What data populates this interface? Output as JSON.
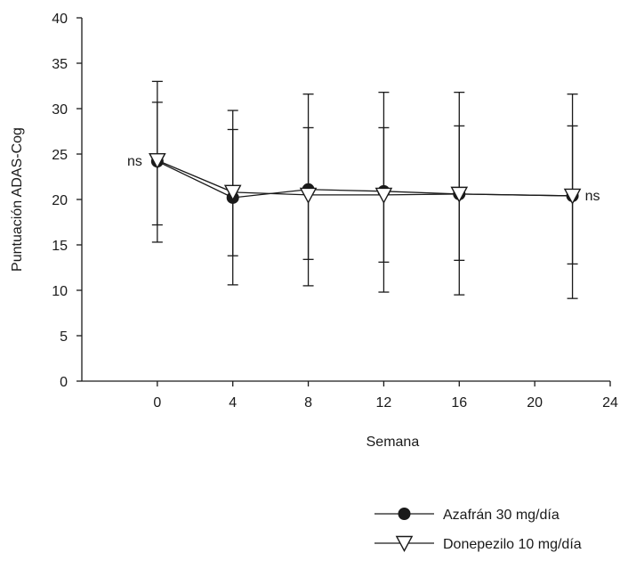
{
  "chart_data": {
    "type": "line",
    "xlabel": "Semana",
    "ylabel": "Puntuación ADAS-Cog",
    "xlim": [
      -4,
      24
    ],
    "ylim": [
      0,
      40
    ],
    "x_ticks": [
      0,
      4,
      8,
      12,
      16,
      20,
      24
    ],
    "y_ticks": [
      0,
      5,
      10,
      15,
      20,
      25,
      30,
      35,
      40
    ],
    "grid": false,
    "legend_position": "bottom-right",
    "series": [
      {
        "name": "Azafrán 30 mg/día",
        "marker": "filled-circle",
        "color": "#1a1a1a",
        "x": [
          0,
          4,
          8,
          12,
          16,
          22
        ],
        "y": [
          24.2,
          20.2,
          21.1,
          20.9,
          20.6,
          20.4
        ],
        "err_low": [
          15.3,
          10.6,
          10.5,
          9.8,
          9.5,
          9.1
        ],
        "err_high": [
          33.0,
          29.8,
          31.6,
          31.8,
          31.8,
          31.6
        ]
      },
      {
        "name": "Donepezilo 10 mg/día",
        "marker": "open-triangle-down",
        "color": "#1a1a1a",
        "x": [
          0,
          4,
          8,
          12,
          16,
          22
        ],
        "y": [
          24.3,
          20.8,
          20.5,
          20.5,
          20.6,
          20.4
        ],
        "err_low": [
          17.2,
          13.8,
          13.4,
          13.1,
          13.3,
          12.9
        ],
        "err_high": [
          30.7,
          27.7,
          27.9,
          27.9,
          28.1,
          28.1
        ]
      }
    ],
    "annotations": [
      {
        "text": "ns",
        "x": 0,
        "y": 24.2,
        "side": "left"
      },
      {
        "text": "ns",
        "x": 22,
        "y": 20.4,
        "side": "right"
      }
    ]
  }
}
